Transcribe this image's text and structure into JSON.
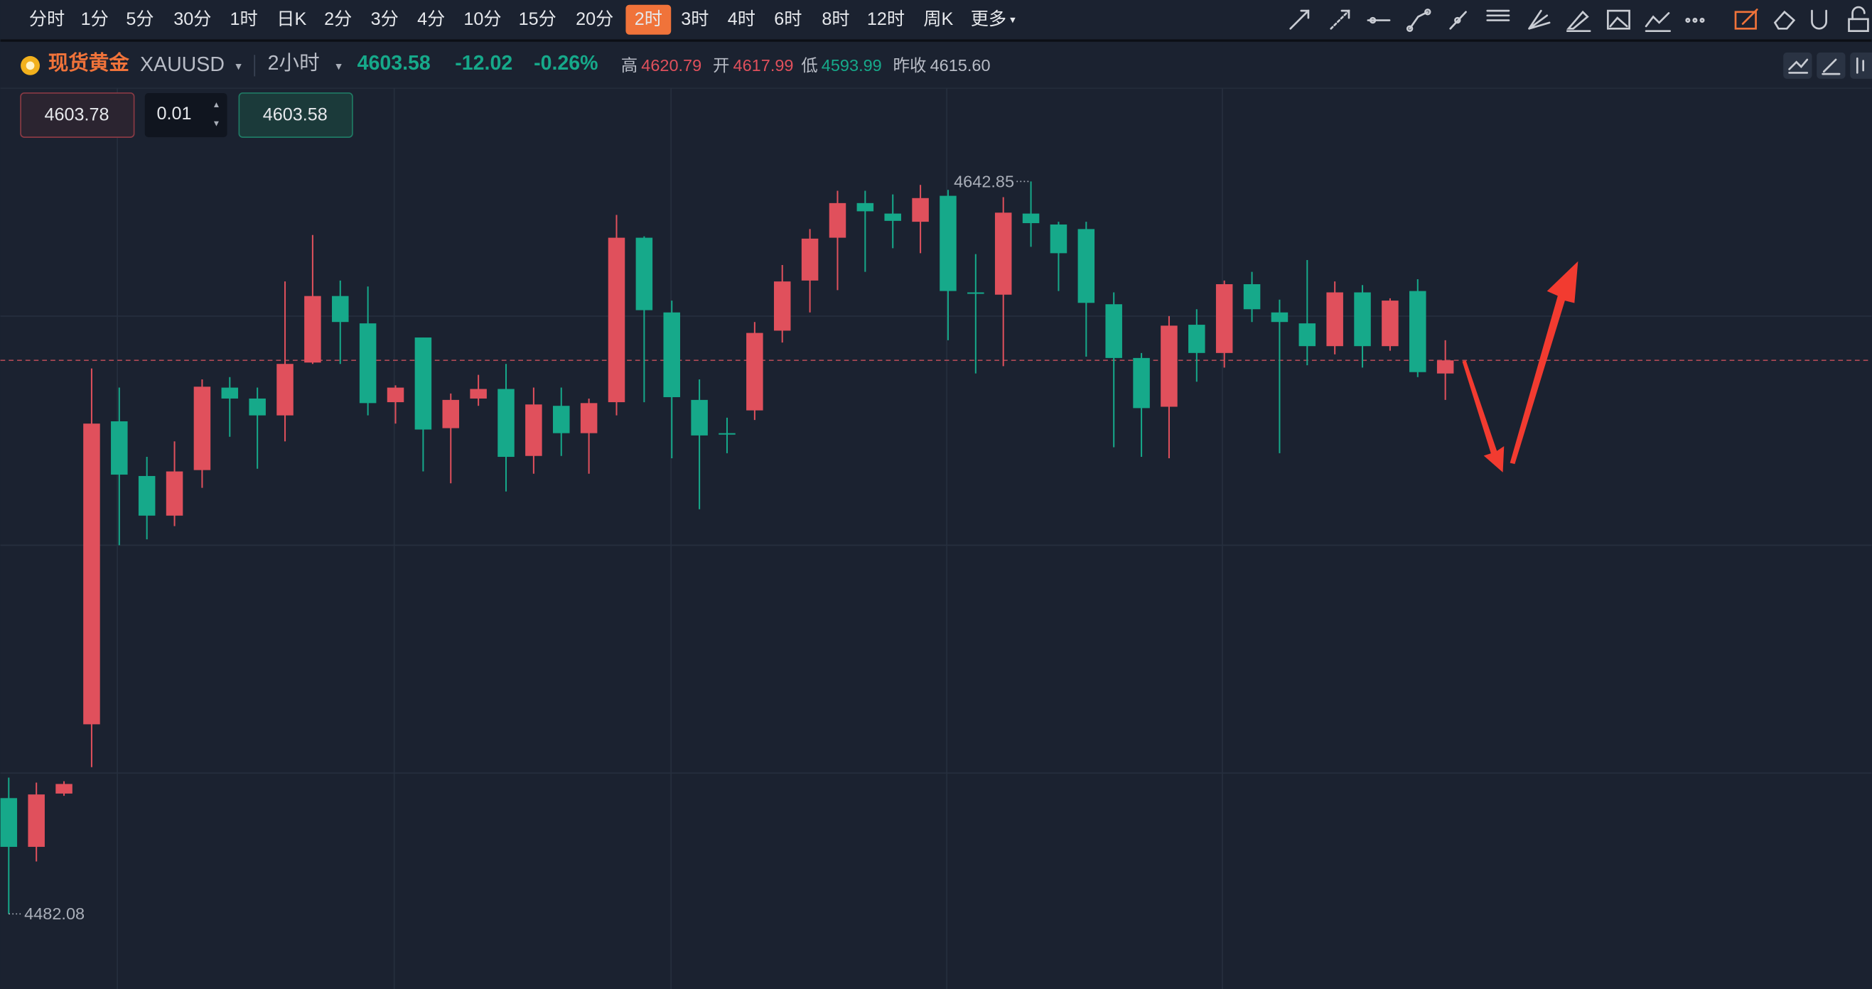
{
  "toolbar": {
    "periods": [
      "分时",
      "1分",
      "5分",
      "30分",
      "1时",
      "日K",
      "2分",
      "3分",
      "4分",
      "10分",
      "15分",
      "20分",
      "2时",
      "3时",
      "4时",
      "6时",
      "8时",
      "12时",
      "周K",
      "更多"
    ],
    "active_index": 12
  },
  "header": {
    "name": "现货黄金",
    "symbol": "XAUUSD",
    "period": "2小时",
    "price": "4603.58",
    "change": "-12.02",
    "change_pct": "-0.26%",
    "stats": [
      {
        "label": "高",
        "value": "4620.79"
      },
      {
        "label": "开",
        "value": "4617.99"
      },
      {
        "label": "低",
        "value": "4593.99"
      },
      {
        "label": "昨收",
        "value": "4615.60"
      }
    ]
  },
  "order_panel": {
    "sell": "4603.78",
    "quantity": "0.01",
    "buy": "4603.58"
  },
  "chart_data": {
    "type": "candlestick",
    "up_color": "#e0505c",
    "down_color": "#16a98a",
    "ylim": [
      4465.6,
      4663.3
    ],
    "open": [
      4507.5,
      4496.8,
      4508.5,
      4523.7,
      4590.2,
      4578.2,
      4569.5,
      4579.5,
      4597.6,
      4595.2,
      4591.5,
      4603.1,
      4617.7,
      4611.7,
      4594.4,
      4608.6,
      4588.7,
      4595.2,
      4597.3,
      4582.6,
      4593.6,
      4587.6,
      4594.4,
      4630.5,
      4614.1,
      4594.9,
      4587.6,
      4592.6,
      4610.1,
      4621.1,
      4630.5,
      4638.1,
      4635.8,
      4634.0,
      4639.7,
      4618.5,
      4618.0,
      4635.8,
      4633.4,
      4632.4,
      4615.9,
      4604.1,
      4593.4,
      4611.4,
      4605.2,
      4620.3,
      4614.1,
      4611.7,
      4606.7,
      4618.5,
      4606.7,
      4618.8,
      4600.7
    ],
    "high": [
      4512.0,
      4510.9,
      4511.2,
      4601.8,
      4597.6,
      4582.4,
      4585.8,
      4599.4,
      4599.9,
      4597.6,
      4620.9,
      4631.1,
      4621.1,
      4619.8,
      4598.1,
      4608.6,
      4596.3,
      4600.4,
      4602.8,
      4597.6,
      4597.6,
      4595.2,
      4635.5,
      4630.8,
      4616.7,
      4599.4,
      4591.0,
      4612.0,
      4624.5,
      4632.4,
      4640.8,
      4640.8,
      4640.0,
      4642.1,
      4641.0,
      4626.9,
      4639.4,
      4642.85,
      4634.0,
      4634.0,
      4618.5,
      4605.2,
      4613.3,
      4614.8,
      4621.1,
      4623.0,
      4616.9,
      4625.6,
      4620.9,
      4620.1,
      4617.2,
      4621.4,
      4608.0
    ],
    "low": [
      4482.08,
      4493.6,
      4508.0,
      4514.3,
      4563.0,
      4564.3,
      4567.2,
      4575.6,
      4586.8,
      4579.8,
      4585.8,
      4602.8,
      4602.8,
      4591.5,
      4589.7,
      4579.2,
      4576.6,
      4593.6,
      4574.8,
      4578.7,
      4582.6,
      4578.7,
      4591.5,
      4594.4,
      4582.1,
      4570.9,
      4583.2,
      4590.5,
      4607.5,
      4614.1,
      4619.0,
      4623.0,
      4628.2,
      4627.1,
      4608.0,
      4600.7,
      4602.3,
      4628.5,
      4618.8,
      4604.4,
      4584.5,
      4582.4,
      4582.1,
      4598.9,
      4602.0,
      4612.0,
      4583.2,
      4602.5,
      4604.9,
      4602.0,
      4605.7,
      4599.9,
      4594.9
    ],
    "close": [
      4496.8,
      4508.3,
      4510.6,
      4589.7,
      4578.5,
      4569.5,
      4579.2,
      4597.8,
      4595.2,
      4591.5,
      4602.8,
      4617.7,
      4612.0,
      4594.2,
      4597.6,
      4588.4,
      4594.9,
      4597.3,
      4582.4,
      4593.9,
      4587.6,
      4594.2,
      4630.5,
      4614.6,
      4595.5,
      4587.1,
      4587.4,
      4609.6,
      4620.9,
      4630.3,
      4638.1,
      4636.3,
      4634.2,
      4639.2,
      4618.8,
      4618.2,
      4636.0,
      4633.7,
      4627.1,
      4616.2,
      4604.1,
      4593.1,
      4611.2,
      4605.2,
      4620.3,
      4614.8,
      4612.0,
      4606.7,
      4618.5,
      4606.7,
      4616.7,
      4601.0,
      4603.58
    ]
  }
}
